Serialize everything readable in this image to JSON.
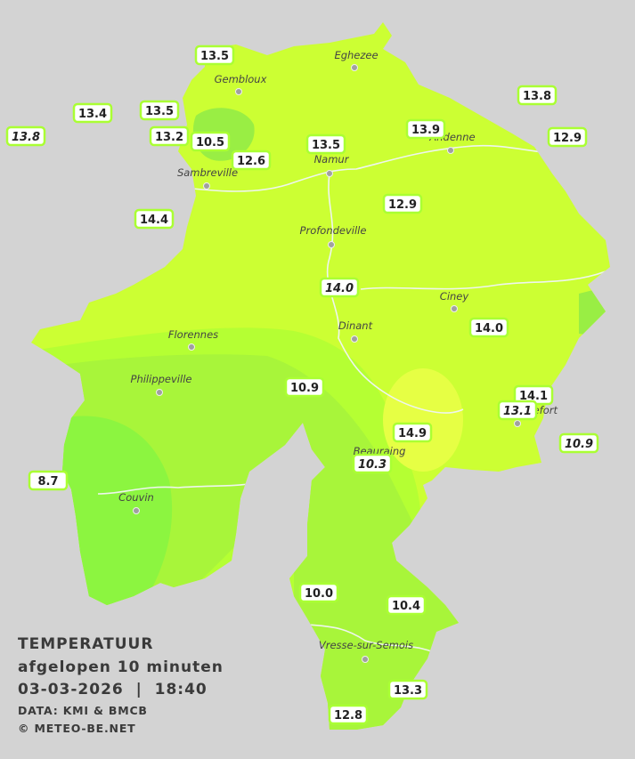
{
  "legend": {
    "title": "TEMPERATUUR",
    "subtitle": "afgelopen 10 minuten",
    "timestamp": "03-03-2026  |  18:40",
    "source": "DATA: KMI & BMCB",
    "copyright": "© METEO-BE.NET"
  },
  "cities": [
    "Eghezee",
    "Gembloux",
    "Andenne",
    "Namur",
    "Sambreville",
    "Profondeville",
    "Ciney",
    "Dinant",
    "Florennes",
    "Philippeville",
    "Rochefort",
    "Beauraing",
    "Couvin",
    "Vresse-sur-Semois"
  ],
  "stations": [
    {
      "label": "13.5",
      "italic": false
    },
    {
      "label": "13.4",
      "italic": false
    },
    {
      "label": "13.5",
      "italic": false
    },
    {
      "label": "13.8",
      "italic": true
    },
    {
      "label": "13.2",
      "italic": false
    },
    {
      "label": "10.5",
      "italic": false
    },
    {
      "label": "12.6",
      "italic": false
    },
    {
      "label": "13.5",
      "italic": false
    },
    {
      "label": "13.9",
      "italic": false
    },
    {
      "label": "13.8",
      "italic": false
    },
    {
      "label": "12.9",
      "italic": false
    },
    {
      "label": "12.9",
      "italic": false
    },
    {
      "label": "14.4",
      "italic": false
    },
    {
      "label": "14.0",
      "italic": true
    },
    {
      "label": "14.0",
      "italic": false
    },
    {
      "label": "10.9",
      "italic": false
    },
    {
      "label": "14.1",
      "italic": false
    },
    {
      "label": "13.1",
      "italic": true
    },
    {
      "label": "10.9",
      "italic": true
    },
    {
      "label": "14.9",
      "italic": false
    },
    {
      "label": "10.3",
      "italic": true
    },
    {
      "label": "8.7",
      "italic": false
    },
    {
      "label": "10.0",
      "italic": false
    },
    {
      "label": "10.4",
      "italic": false
    },
    {
      "label": "13.3",
      "italic": false
    },
    {
      "label": "12.8",
      "italic": false
    }
  ]
}
